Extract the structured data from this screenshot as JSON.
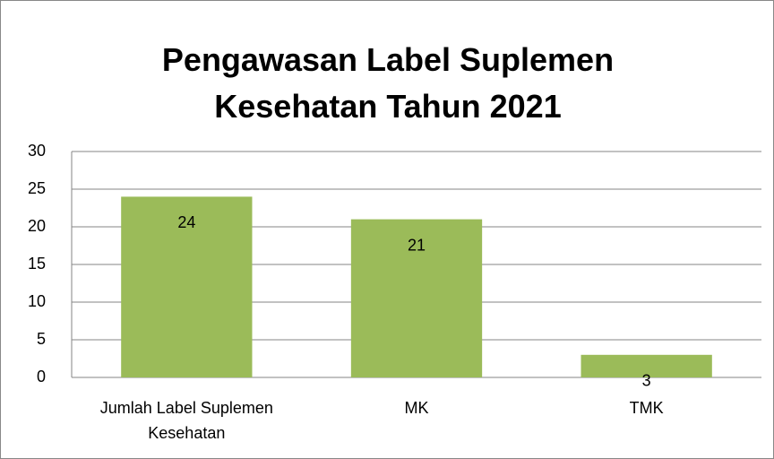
{
  "chart_data": {
    "type": "bar",
    "title": "Pengawasan Label Suplemen Kesehatan Tahun 2021",
    "categories": [
      "Jumlah Label Suplemen Kesehatan",
      "MK",
      "TMK"
    ],
    "values": [
      24,
      21,
      3
    ],
    "color": "#9bbb59",
    "ylim": [
      0,
      30
    ],
    "yticks": [
      0,
      5,
      10,
      15,
      20,
      25,
      30
    ],
    "grid": true
  }
}
